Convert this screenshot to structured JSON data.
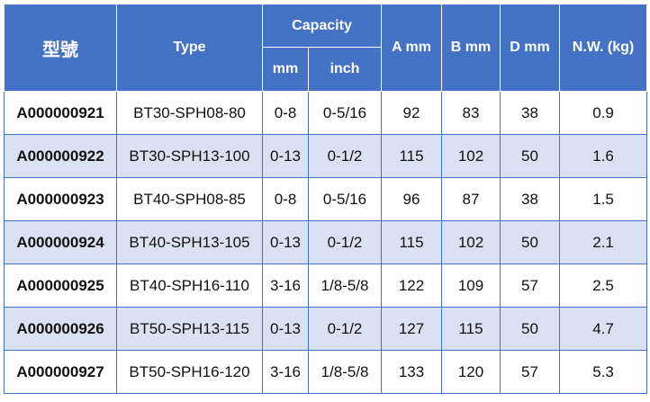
{
  "header": {
    "model": "型號",
    "type": "Type",
    "capacity": "Capacity",
    "capacity_mm": "mm",
    "capacity_inch": "inch",
    "a": "A mm",
    "b": "B mm",
    "d": "D mm",
    "nw": "N.W. (kg)"
  },
  "colors": {
    "header_bg": "#4472c4",
    "alt_row_bg": "#d9e1f2",
    "row_bg": "#ffffff"
  },
  "rows": [
    {
      "model": "A000000921",
      "type": "BT30-SPH08-80",
      "mm": "0-8",
      "inch": "0-5/16",
      "a": "92",
      "b": "83",
      "d": "38",
      "nw": "0.9"
    },
    {
      "model": "A000000922",
      "type": "BT30-SPH13-100",
      "mm": "0-13",
      "inch": "0-1/2",
      "a": "115",
      "b": "102",
      "d": "50",
      "nw": "1.6"
    },
    {
      "model": "A000000923",
      "type": "BT40-SPH08-85",
      "mm": "0-8",
      "inch": "0-5/16",
      "a": "96",
      "b": "87",
      "d": "38",
      "nw": "1.5"
    },
    {
      "model": "A000000924",
      "type": "BT40-SPH13-105",
      "mm": "0-13",
      "inch": "0-1/2",
      "a": "115",
      "b": "102",
      "d": "50",
      "nw": "2.1"
    },
    {
      "model": "A000000925",
      "type": "BT40-SPH16-110",
      "mm": "3-16",
      "inch": "1/8-5/8",
      "a": "122",
      "b": "109",
      "d": "57",
      "nw": "2.5"
    },
    {
      "model": "A000000926",
      "type": "BT50-SPH13-115",
      "mm": "0-13",
      "inch": "0-1/2",
      "a": "127",
      "b": "115",
      "d": "50",
      "nw": "4.7"
    },
    {
      "model": "A000000927",
      "type": "BT50-SPH16-120",
      "mm": "3-16",
      "inch": "1/8-5/8",
      "a": "133",
      "b": "120",
      "d": "57",
      "nw": "5.3"
    }
  ]
}
